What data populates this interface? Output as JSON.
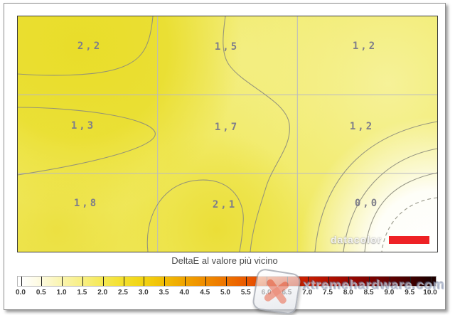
{
  "chart_data": {
    "type": "heatmap",
    "title": "DeltaE al valore più vicino",
    "rows": 3,
    "cols": 3,
    "cell_labels": [
      [
        "2,2",
        "1,5",
        "1,2"
      ],
      [
        "1,3",
        "1,7",
        "1,2"
      ],
      [
        "1,8",
        "2,1",
        "0,0"
      ]
    ],
    "cell_values": [
      [
        2.2,
        1.5,
        1.2
      ],
      [
        1.3,
        1.7,
        1.2
      ],
      [
        1.8,
        2.1,
        0.0
      ]
    ],
    "grid": "on",
    "colorbar": {
      "min": 0.0,
      "max": 10.0,
      "step": 0.5,
      "tick_labels": [
        "0.0",
        "0.5",
        "1.0",
        "1.5",
        "2.0",
        "2.5",
        "3.0",
        "3.5",
        "4.0",
        "4.5",
        "5.0",
        "5.5",
        "6.0",
        "6.5",
        "7.0",
        "7.5",
        "8.0",
        "8.5",
        "9.0",
        "9.5",
        "10.0"
      ],
      "stops": [
        {
          "value": 0.0,
          "color": "#ffffff"
        },
        {
          "value": 0.5,
          "color": "#fdfadd"
        },
        {
          "value": 1.0,
          "color": "#faf4ad"
        },
        {
          "value": 1.5,
          "color": "#f8ef83"
        },
        {
          "value": 2.0,
          "color": "#f5e854"
        },
        {
          "value": 2.5,
          "color": "#f3df2b"
        },
        {
          "value": 3.0,
          "color": "#f2d311"
        },
        {
          "value": 3.5,
          "color": "#f1bd05"
        },
        {
          "value": 4.0,
          "color": "#f0a400"
        },
        {
          "value": 4.5,
          "color": "#ef8c00"
        },
        {
          "value": 5.0,
          "color": "#ee7400"
        },
        {
          "value": 5.5,
          "color": "#ea5a00"
        },
        {
          "value": 6.0,
          "color": "#e24200"
        },
        {
          "value": 6.5,
          "color": "#d72d00"
        },
        {
          "value": 7.0,
          "color": "#c81d00"
        },
        {
          "value": 7.5,
          "color": "#b31100"
        },
        {
          "value": 8.0,
          "color": "#9b0800"
        },
        {
          "value": 8.5,
          "color": "#800300"
        },
        {
          "value": 9.0,
          "color": "#630000"
        },
        {
          "value": 9.5,
          "color": "#440000"
        },
        {
          "value": 10.0,
          "color": "#1f0000"
        }
      ]
    }
  },
  "watermarks": {
    "vendor": "datacolor",
    "site": "xtremehardware.com"
  },
  "logo": {
    "red_bar_color": "#ee2124"
  },
  "colors": {
    "value_text": "#7e7e8a",
    "contour_line": "#8c8c7c",
    "grid_line": "#b9b9c2"
  }
}
